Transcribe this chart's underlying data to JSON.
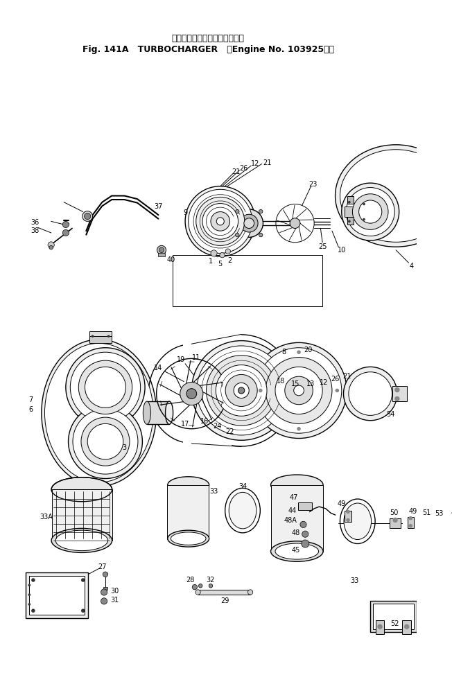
{
  "title_jp": "ターボチャージャ　（適用号機",
  "title_en1": "Fig. 141A   TURBOCHARGER",
  "title_en2": "（Engine No. 103925～）",
  "bg": "#ffffff",
  "lc": "#000000",
  "figsize": [
    6.52,
    9.74
  ],
  "dpi": 100
}
